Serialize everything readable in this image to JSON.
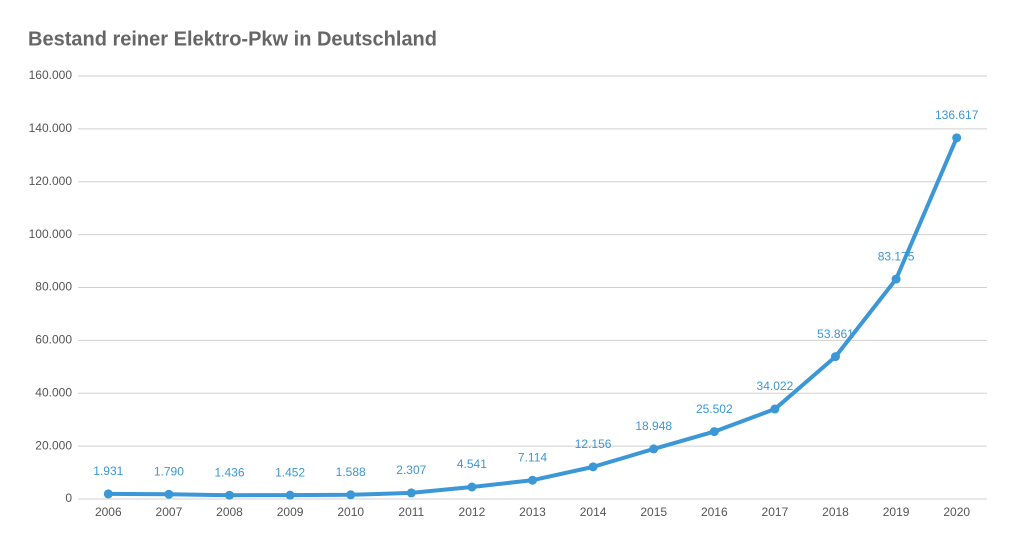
{
  "chart_data": {
    "type": "line",
    "title": "Bestand reiner Elektro-Pkw in Deutschland",
    "categories": [
      "2006",
      "2007",
      "2008",
      "2009",
      "2010",
      "2011",
      "2012",
      "2013",
      "2014",
      "2015",
      "2016",
      "2017",
      "2018",
      "2019",
      "2020"
    ],
    "values": [
      1931,
      1790,
      1436,
      1452,
      1588,
      2307,
      4541,
      7114,
      12156,
      18948,
      25502,
      34022,
      53861,
      83175,
      136617
    ],
    "value_labels": [
      "1.931",
      "1.790",
      "1.436",
      "1.452",
      "1.588",
      "2.307",
      "4.541",
      "7.114",
      "12.156",
      "18.948",
      "25.502",
      "34.022",
      "53.861",
      "83.175",
      "136.617"
    ],
    "color": "#3b97d5",
    "ylim": [
      0,
      160000
    ],
    "yticks": [
      0,
      {
        "value": 20000,
        "label": "20.000"
      },
      {
        "value": 40000,
        "label": "40.000"
      },
      {
        "value": 60000,
        "label": "60.000"
      },
      {
        "value": 80000,
        "label": "80.000"
      },
      {
        "value": 100000,
        "label": "100.000"
      },
      {
        "value": 120000,
        "label": "120.000"
      },
      {
        "value": 140000,
        "label": "140.000"
      },
      {
        "value": 160000,
        "label": "160.000"
      }
    ],
    "grid": true
  }
}
